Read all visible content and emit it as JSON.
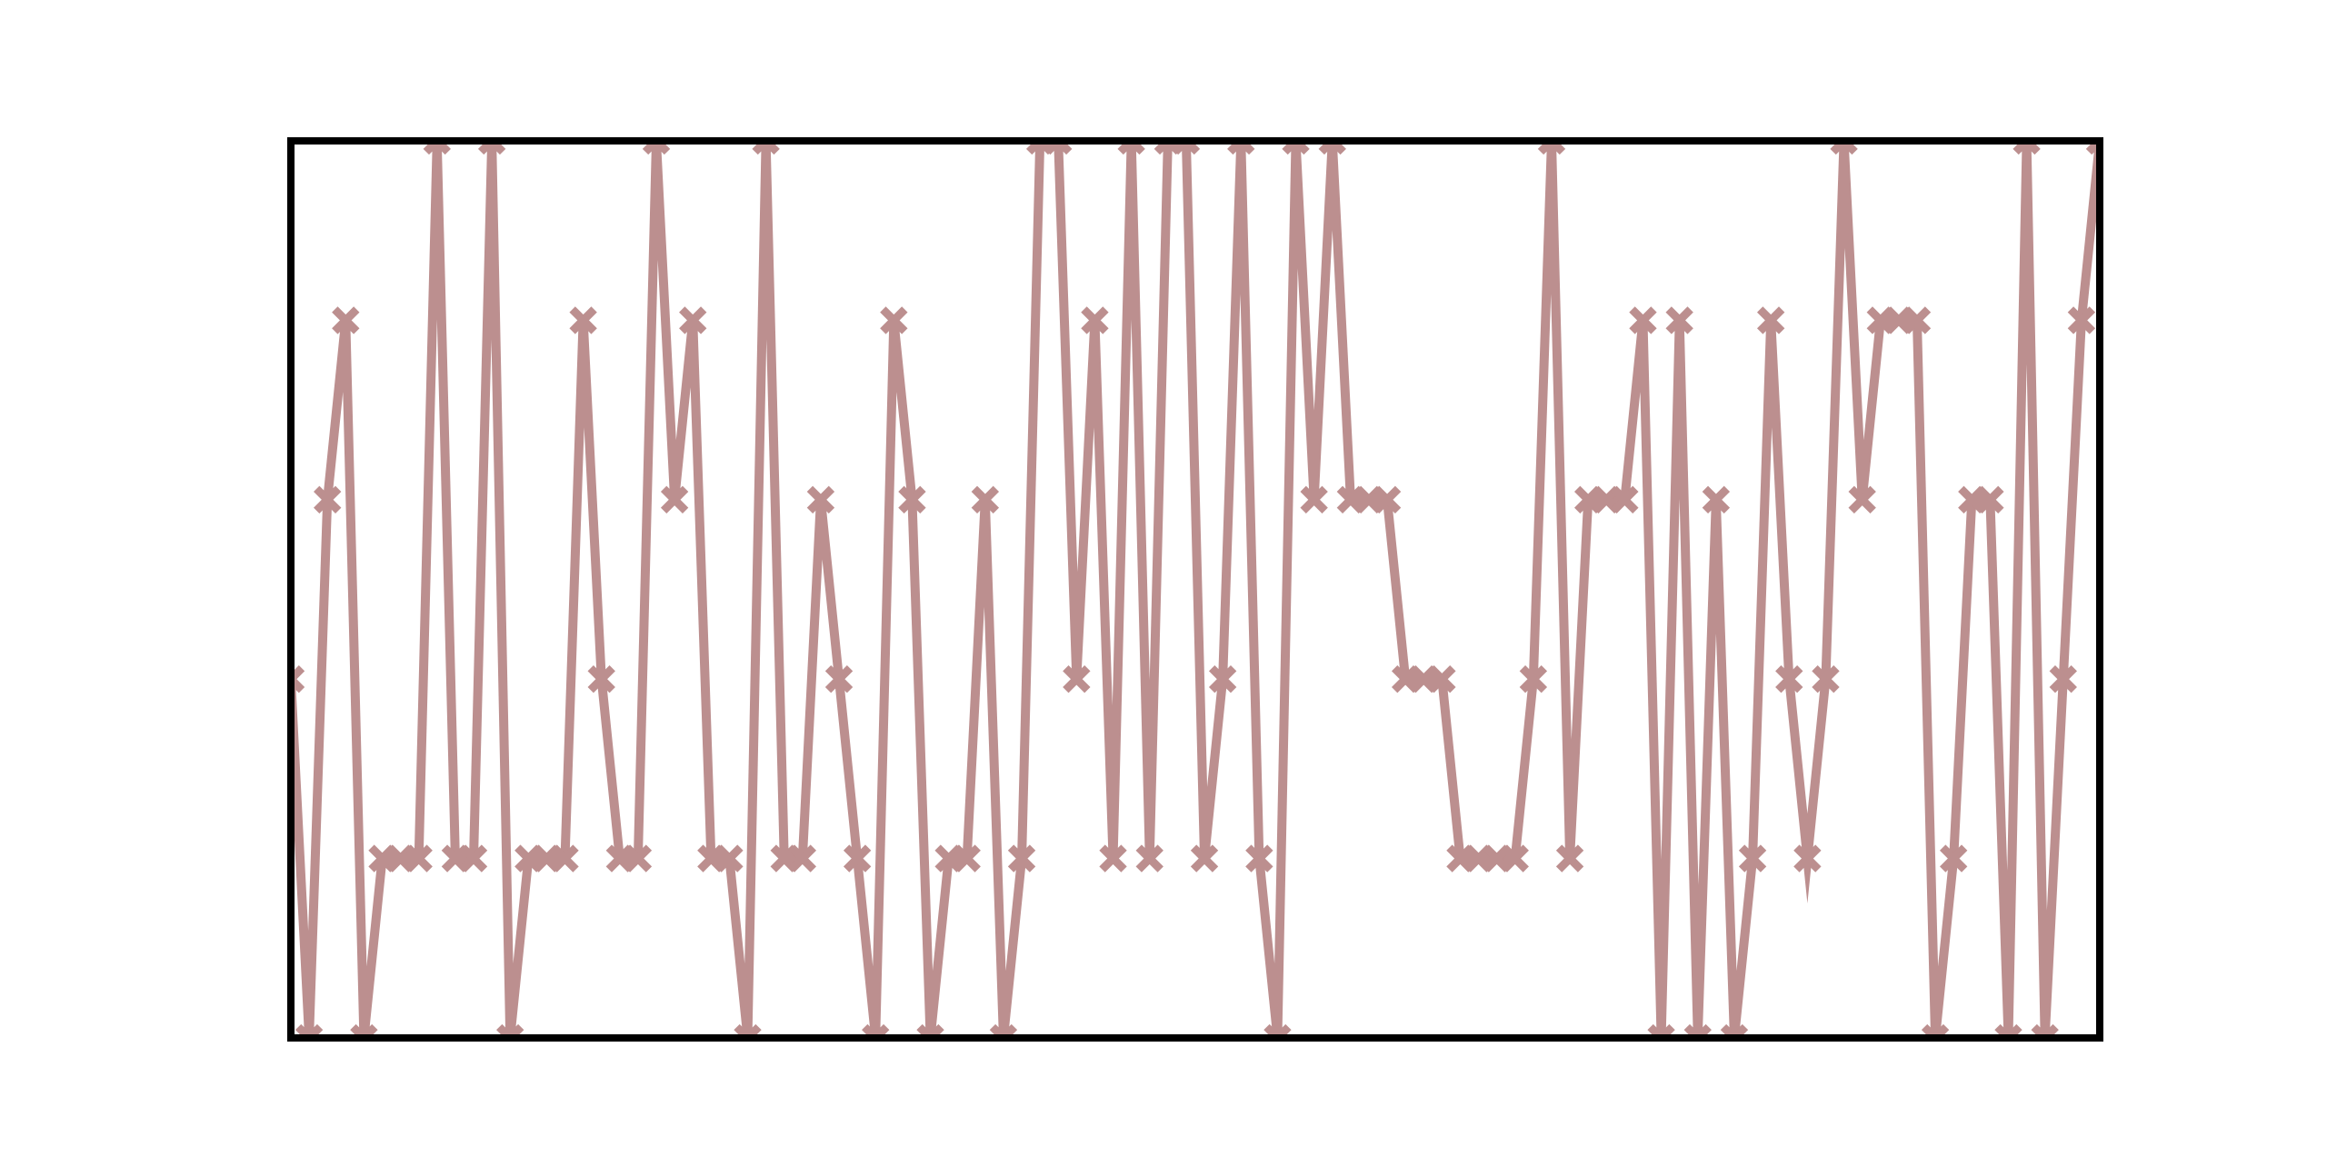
{
  "chart_data": {
    "type": "line",
    "title": "",
    "xlabel": "",
    "ylabel": "",
    "grid": false,
    "legend": "none",
    "x": [
      0,
      1,
      2,
      3,
      4,
      5,
      6,
      7,
      8,
      9,
      10,
      11,
      12,
      13,
      14,
      15,
      16,
      17,
      18,
      19,
      20,
      21,
      22,
      23,
      24,
      25,
      26,
      27,
      28,
      29,
      30,
      31,
      32,
      33,
      34,
      35,
      36,
      37,
      38,
      39,
      40,
      41,
      42,
      43,
      44,
      45,
      46,
      47,
      48,
      49,
      50,
      51,
      52,
      53,
      54,
      55,
      56,
      57,
      58,
      59,
      60,
      61,
      62,
      63,
      64,
      65,
      66,
      67,
      68,
      69,
      70,
      71,
      72,
      73,
      74,
      75,
      76,
      77,
      78,
      79,
      80,
      81,
      82,
      83,
      84,
      85,
      86,
      87,
      88,
      89,
      90,
      91,
      92,
      93,
      94,
      95,
      96,
      97,
      98,
      99
    ],
    "xlim": [
      0,
      99
    ],
    "ylim": [
      0,
      5
    ],
    "series": [
      {
        "color": "#bc8f8f",
        "marker": "x",
        "values": [
          2,
          0,
          3,
          4,
          0,
          1,
          1,
          1,
          5,
          1,
          1,
          5,
          0,
          1,
          1,
          1,
          4,
          2,
          1,
          1,
          5,
          3,
          4,
          1,
          1,
          0,
          5,
          1,
          1,
          3,
          2,
          1,
          0,
          4,
          3,
          0,
          1,
          1,
          3,
          0,
          1,
          5,
          5,
          2,
          4,
          1,
          5,
          1,
          5,
          5,
          1,
          2,
          5,
          1,
          0,
          5,
          3,
          5,
          3,
          3,
          3,
          2,
          2,
          2,
          1,
          1,
          1,
          1,
          2,
          5,
          1,
          3,
          3,
          3,
          4,
          0,
          4,
          0,
          3,
          0,
          1,
          4,
          2,
          1,
          2,
          5,
          3,
          4,
          4,
          4,
          0,
          1,
          3,
          3,
          0,
          5,
          0,
          2,
          4,
          5
        ]
      }
    ]
  }
}
